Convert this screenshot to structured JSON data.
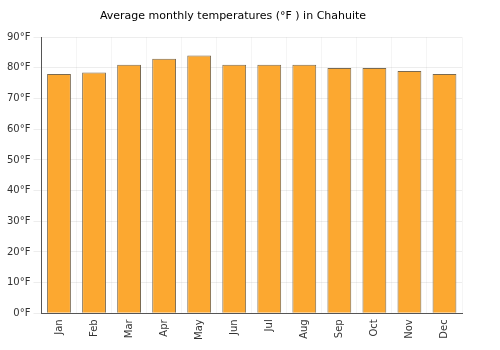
{
  "chart_data": {
    "type": "bar",
    "title": "Average monthly temperatures (°F ) in Chahuite",
    "categories": [
      "Jan",
      "Feb",
      "Mar",
      "Apr",
      "May",
      "Jun",
      "Jul",
      "Aug",
      "Sep",
      "Oct",
      "Nov",
      "Dec"
    ],
    "values": [
      78,
      78.5,
      81,
      83,
      84,
      81,
      81,
      81,
      80,
      80,
      79,
      78
    ],
    "color": "#fca830",
    "ylim": [
      0,
      90
    ],
    "yticks": [
      {
        "value": 0,
        "label": "0°F"
      },
      {
        "value": 10,
        "label": "10°F"
      },
      {
        "value": 20,
        "label": "20°F"
      },
      {
        "value": 30,
        "label": "30°F"
      },
      {
        "value": 40,
        "label": "40°F"
      },
      {
        "value": 50,
        "label": "50°F"
      },
      {
        "value": 60,
        "label": "60°F"
      },
      {
        "value": 70,
        "label": "70°F"
      },
      {
        "value": 80,
        "label": "80°F"
      },
      {
        "value": 90,
        "label": "90°F"
      }
    ],
    "grid": true
  }
}
